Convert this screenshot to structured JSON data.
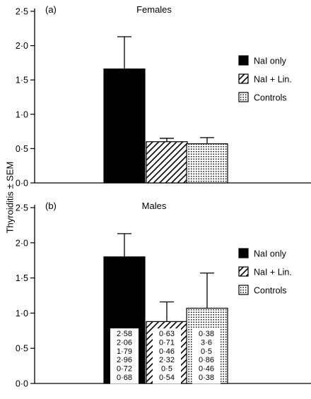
{
  "y_axis_label": "Thyroiditis ± SEM",
  "tick_labels": [
    "0·0",
    "0·5",
    "1·0",
    "1·5",
    "2·0",
    "2·5"
  ],
  "legend_swatch_colors": {
    "nal_only": "#000000",
    "nal_lin": "hatched",
    "controls": "dotted"
  },
  "chart_data": [
    {
      "type": "bar",
      "panel_label": "(a)",
      "title": "Females",
      "ylabel": "Thyroiditis ± SEM",
      "ylim": [
        0,
        2.5
      ],
      "yticks": [
        0,
        0.5,
        1.0,
        1.5,
        2.0,
        2.5
      ],
      "categories": [
        "NaI only",
        "NaI + Lin.",
        "Controls"
      ],
      "values": [
        1.66,
        0.6,
        0.57
      ],
      "errors": [
        0.47,
        0.05,
        0.09
      ],
      "legend": [
        "NaI only",
        "NaI + Lin.",
        "Controls"
      ],
      "legend_position": "right"
    },
    {
      "type": "bar",
      "panel_label": "(b)",
      "title": "Males",
      "ylabel": "Thyroiditis ± SEM",
      "ylim": [
        0,
        2.5
      ],
      "yticks": [
        0,
        0.5,
        1.0,
        1.5,
        2.0,
        2.5
      ],
      "categories": [
        "NaI only",
        "NaI + Lin.",
        "Controls"
      ],
      "values": [
        1.8,
        0.88,
        1.07
      ],
      "errors": [
        0.33,
        0.28,
        0.5
      ],
      "legend": [
        "NaI only",
        "NaI + Lin.",
        "Controls"
      ],
      "legend_position": "right",
      "bar_annotations": [
        [
          "2·58",
          "2·06",
          "1·79",
          "2·96",
          "0·72",
          "0·68"
        ],
        [
          "0·63",
          "0·71",
          "0·46",
          "2·32",
          "0·5",
          "0·54"
        ],
        [
          "0·38",
          "3·6",
          "0·5",
          "0·86",
          "0·46",
          "0·38"
        ]
      ]
    }
  ]
}
